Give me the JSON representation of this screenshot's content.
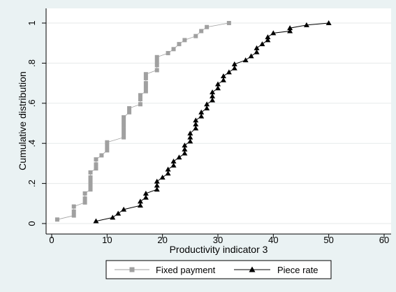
{
  "chart_data": {
    "type": "line",
    "title": "",
    "xlabel": "Productivity indicator 3",
    "ylabel": "Cumulative distribution",
    "xlim": [
      0,
      60
    ],
    "ylim": [
      0,
      1
    ],
    "x_ticks": [
      0,
      10,
      20,
      30,
      40,
      50,
      60
    ],
    "x_tick_labels": [
      "0",
      "10",
      "20",
      "30",
      "40",
      "50",
      "60"
    ],
    "y_ticks": [
      0,
      0.2,
      0.4,
      0.6,
      0.8,
      1
    ],
    "y_tick_labels": [
      "0",
      ".2",
      ".4",
      ".6",
      ".8",
      "1"
    ],
    "grid": "horizontal",
    "legend_position": "bottom",
    "series": [
      {
        "name": "Fixed payment",
        "color": "#a0a0a0",
        "marker": "square",
        "points": [
          [
            1,
            0.02
          ],
          [
            4,
            0.04
          ],
          [
            4,
            0.06
          ],
          [
            4,
            0.085
          ],
          [
            6,
            0.105
          ],
          [
            6,
            0.125
          ],
          [
            6,
            0.15
          ],
          [
            7,
            0.17
          ],
          [
            7,
            0.19
          ],
          [
            7,
            0.21
          ],
          [
            7,
            0.23
          ],
          [
            7,
            0.255
          ],
          [
            8,
            0.275
          ],
          [
            8,
            0.295
          ],
          [
            8,
            0.32
          ],
          [
            9,
            0.34
          ],
          [
            10,
            0.365
          ],
          [
            10,
            0.385
          ],
          [
            10,
            0.405
          ],
          [
            13,
            0.43
          ],
          [
            13,
            0.45
          ],
          [
            13,
            0.47
          ],
          [
            13,
            0.49
          ],
          [
            13,
            0.51
          ],
          [
            13,
            0.53
          ],
          [
            14,
            0.555
          ],
          [
            14,
            0.575
          ],
          [
            16,
            0.595
          ],
          [
            16,
            0.62
          ],
          [
            16,
            0.64
          ],
          [
            17,
            0.66
          ],
          [
            17,
            0.68
          ],
          [
            17,
            0.7
          ],
          [
            17,
            0.725
          ],
          [
            17,
            0.745
          ],
          [
            19,
            0.765
          ],
          [
            19,
            0.79
          ],
          [
            19,
            0.81
          ],
          [
            19,
            0.83
          ],
          [
            21,
            0.85
          ],
          [
            22,
            0.87
          ],
          [
            23,
            0.895
          ],
          [
            24,
            0.915
          ],
          [
            26,
            0.935
          ],
          [
            27,
            0.96
          ],
          [
            28,
            0.98
          ],
          [
            32,
            1.0
          ]
        ]
      },
      {
        "name": "Piece rate",
        "color": "#000000",
        "marker": "triangle",
        "points": [
          [
            8,
            0.012
          ],
          [
            11,
            0.03
          ],
          [
            12,
            0.05
          ],
          [
            13,
            0.07
          ],
          [
            16,
            0.09
          ],
          [
            16,
            0.11
          ],
          [
            17,
            0.13
          ],
          [
            17,
            0.15
          ],
          [
            19,
            0.17
          ],
          [
            19,
            0.19
          ],
          [
            19,
            0.21
          ],
          [
            20,
            0.23
          ],
          [
            21,
            0.25
          ],
          [
            21,
            0.27
          ],
          [
            22,
            0.29
          ],
          [
            22,
            0.31
          ],
          [
            23,
            0.33
          ],
          [
            24,
            0.35
          ],
          [
            24,
            0.37
          ],
          [
            24,
            0.39
          ],
          [
            25,
            0.41
          ],
          [
            25,
            0.43
          ],
          [
            25,
            0.45
          ],
          [
            26,
            0.475
          ],
          [
            26,
            0.495
          ],
          [
            26,
            0.515
          ],
          [
            27,
            0.535
          ],
          [
            27,
            0.555
          ],
          [
            28,
            0.575
          ],
          [
            28,
            0.595
          ],
          [
            29,
            0.615
          ],
          [
            29,
            0.635
          ],
          [
            29,
            0.655
          ],
          [
            30,
            0.675
          ],
          [
            30,
            0.695
          ],
          [
            31,
            0.715
          ],
          [
            31,
            0.735
          ],
          [
            32,
            0.755
          ],
          [
            33,
            0.775
          ],
          [
            33,
            0.795
          ],
          [
            35,
            0.815
          ],
          [
            36,
            0.835
          ],
          [
            37,
            0.855
          ],
          [
            37,
            0.875
          ],
          [
            38,
            0.895
          ],
          [
            39,
            0.915
          ],
          [
            39,
            0.93
          ],
          [
            40,
            0.95
          ],
          [
            43,
            0.96
          ],
          [
            43,
            0.975
          ],
          [
            46,
            0.99
          ],
          [
            50,
            1.0
          ]
        ]
      }
    ]
  }
}
